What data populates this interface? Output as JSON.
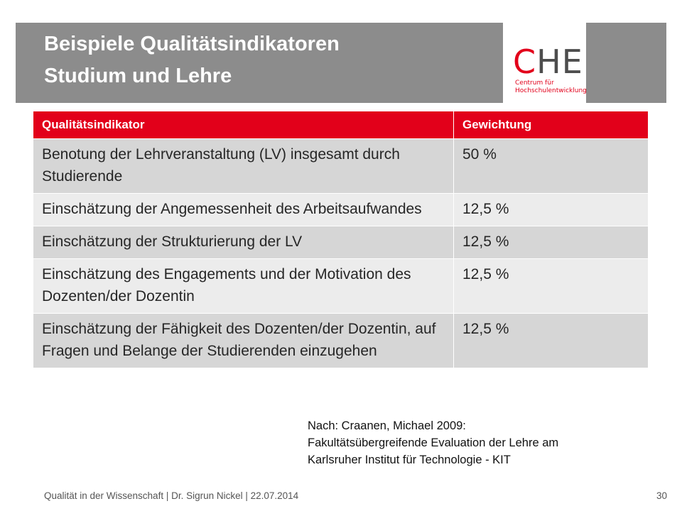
{
  "header": {
    "title_line1": "Beispiele Qualitätsindikatoren",
    "title_line2": "Studium und Lehre"
  },
  "logo": {
    "letter_c": "C",
    "letters_he": "HE",
    "sub_line1": "Centrum für",
    "sub_line2": "Hochschulentwicklung"
  },
  "table": {
    "headers": [
      "Qualitätsindikator",
      "Gewichtung"
    ],
    "rows": [
      {
        "indicator": "Benotung der Lehrveranstaltung (LV) insgesamt durch Studierende",
        "weight": "50 %"
      },
      {
        "indicator": "Einschätzung der Angemessenheit des Arbeitsaufwandes",
        "weight": "12,5 %"
      },
      {
        "indicator": "Einschätzung der Strukturierung der LV",
        "weight": "12,5 %"
      },
      {
        "indicator": "Einschätzung des Engagements und der Motivation des Dozenten/der Dozentin",
        "weight": "12,5 %"
      },
      {
        "indicator": "Einschätzung der Fähigkeit des Dozenten/der Dozentin, auf Fragen und Belange der Studierenden einzugehen",
        "weight": "12,5 %"
      }
    ]
  },
  "source_note": {
    "line1": "Nach: Craanen, Michael 2009:",
    "line2": "Fakultätsübergreifende Evaluation der Lehre am",
    "line3": "Karlsruher Institut für Technologie - KIT"
  },
  "footer": {
    "text": "Qualität in der Wissenschaft | Dr. Sigrun Nickel | 22.07.2014",
    "page_number": "30"
  },
  "colors": {
    "accent_red": "#e2001a",
    "header_gray": "#8c8c8c",
    "row_dark": "#d6d6d6",
    "row_light": "#ececec"
  }
}
